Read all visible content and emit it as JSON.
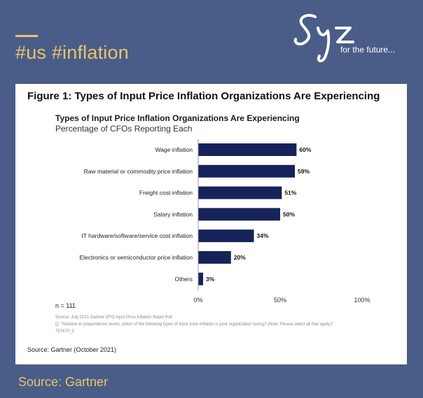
{
  "header": {
    "hashtag": "#us #inflation"
  },
  "logo": {
    "tagline": "for the future..."
  },
  "figure": {
    "title": "Figure 1: Types of Input Price Inflation Organizations Are Experiencing"
  },
  "chart_data": {
    "type": "bar",
    "orientation": "horizontal",
    "title": "Types of Input Price Inflation Organizations Are Experiencing",
    "subtitle": "Percentage of CFOs Reporting Each",
    "categories": [
      "Wage inflation",
      "Raw material or commodity price inflation",
      "Freight cost inflation",
      "Salary inflation",
      "IT hardware/software/service cost inflation",
      "Electronics or semiconductor price inflation",
      "Others"
    ],
    "values": [
      60,
      59,
      51,
      50,
      34,
      20,
      3
    ],
    "value_labels": [
      "60%",
      "59%",
      "51%",
      "50%",
      "34%",
      "20%",
      "3%"
    ],
    "xlim": [
      0,
      100
    ],
    "x_ticks": [
      "0%",
      "50%",
      "100%"
    ],
    "bar_color": "#16235a",
    "grid": false,
    "n_note": "n = 111",
    "source_note": "Source: July 2021 Gartner CFO Input Price Inflation Rapid Poll",
    "question_note": "Q: \"Relative to prepandemic levels, which of the following types of input price inflation is your organization facing? (Note: Please select all that apply.)\"",
    "id_note": "757679_C"
  },
  "card_source": "Source: Gartner (October 2021)",
  "footer": {
    "source": "Source: Gartner"
  },
  "colors": {
    "background": "#4a5d88",
    "accent": "#e9c46a",
    "bar": "#16235a"
  }
}
